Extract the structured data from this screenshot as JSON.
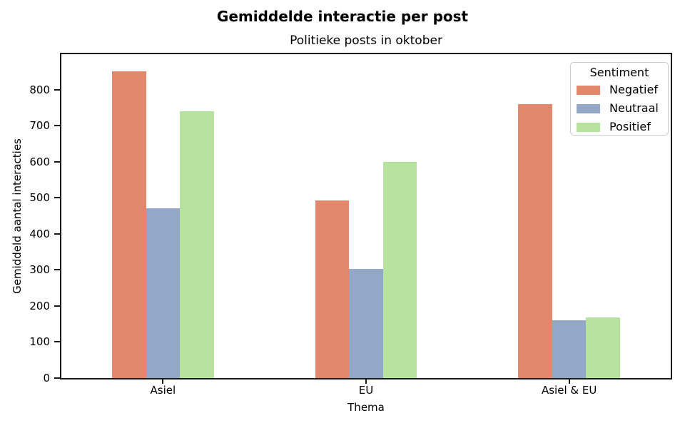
{
  "figure": {
    "suptitle": "Gemiddelde interactie per post",
    "background": "#ffffff"
  },
  "chart_data": {
    "type": "bar",
    "title": "Politieke posts in oktober",
    "xlabel": "Thema",
    "ylabel": "Gemiddeld aantal interacties",
    "categories": [
      "Asiel",
      "EU",
      "Asiel & EU"
    ],
    "series": [
      {
        "name": "Negatief",
        "color": "#e1886c",
        "values": [
          850,
          493,
          760
        ]
      },
      {
        "name": "Neutraal",
        "color": "#92a8c6",
        "values": [
          470,
          302,
          161
        ]
      },
      {
        "name": "Positief",
        "color": "#b7e3a1",
        "values": [
          740,
          600,
          168
        ]
      }
    ],
    "yticks": [
      0,
      100,
      200,
      300,
      400,
      500,
      600,
      700,
      800
    ],
    "ylim": [
      0,
      898
    ],
    "grid": false,
    "legend": {
      "title": "Sentiment",
      "position": "upper right"
    },
    "colors": {
      "spine": "#1a1a1a",
      "text": "#000000"
    }
  }
}
